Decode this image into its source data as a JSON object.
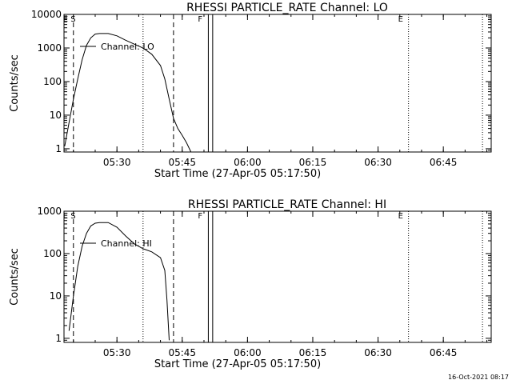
{
  "footer": {
    "timestamp": "16-Oct-2021 08:17"
  },
  "chart_data": [
    {
      "type": "line",
      "title": "RHESSI PARTICLE_RATE Channel: LO",
      "xlabel": "Start Time (27-Apr-05 05:17:50)",
      "ylabel": "Counts/sec",
      "y_scale": "log",
      "xlim": [
        "05:17:50",
        "06:56:00"
      ],
      "ylim": [
        0.8,
        10000
      ],
      "x_ticks": [
        "05:30",
        "05:45",
        "06:00",
        "06:15",
        "06:30",
        "06:45"
      ],
      "y_ticks": [
        "1",
        "10",
        "100",
        "1000",
        "10000"
      ],
      "grid": false,
      "legend_position": "top-left",
      "series": [
        {
          "name": "Channel: LO",
          "color": "#000000",
          "x": [
            "05:18:00",
            "05:19:00",
            "05:20:00",
            "05:21:00",
            "05:22:00",
            "05:23:00",
            "05:24:00",
            "05:25:00",
            "05:26:00",
            "05:28:00",
            "05:30:00",
            "05:32:00",
            "05:34:00",
            "05:36:00",
            "05:38:00",
            "05:40:00",
            "05:41:00",
            "05:42:00",
            "05:43:00",
            "05:44:00",
            "05:45:00",
            "05:46:00",
            "05:47:00"
          ],
          "y": [
            1.2,
            6,
            30,
            120,
            450,
            1200,
            2000,
            2600,
            2700,
            2700,
            2300,
            1700,
            1300,
            1000,
            650,
            300,
            120,
            30,
            8,
            4,
            2.5,
            1.5,
            0.8
          ]
        }
      ],
      "vlines": [
        {
          "x": "05:20:00",
          "style": "dashed",
          "label": "E S"
        },
        {
          "x": "05:36:00",
          "style": "dotted",
          "label": ""
        },
        {
          "x": "05:43:00",
          "style": "dashed",
          "label": ""
        },
        {
          "x": "05:51:00",
          "style": "solid",
          "label": "F"
        },
        {
          "x": "05:52:00",
          "style": "solid",
          "label": ""
        },
        {
          "x": "06:37:00",
          "style": "dotted",
          "label": "E"
        },
        {
          "x": "06:54:00",
          "style": "dotted",
          "label": ""
        }
      ]
    },
    {
      "type": "line",
      "title": "RHESSI PARTICLE_RATE Channel: HI",
      "xlabel": "Start Time (27-Apr-05 05:17:50)",
      "ylabel": "Counts/sec",
      "y_scale": "log",
      "xlim": [
        "05:17:50",
        "06:56:00"
      ],
      "ylim": [
        0.8,
        1000
      ],
      "x_ticks": [
        "05:30",
        "05:45",
        "06:00",
        "06:15",
        "06:30",
        "06:45"
      ],
      "y_ticks": [
        "1",
        "10",
        "100",
        "1000"
      ],
      "grid": false,
      "legend_position": "top-left",
      "series": [
        {
          "name": "Channel: HI",
          "color": "#000000",
          "x": [
            "05:19:00",
            "05:20:00",
            "05:21:00",
            "05:22:00",
            "05:23:00",
            "05:24:00",
            "05:25:00",
            "05:26:00",
            "05:28:00",
            "05:30:00",
            "05:32:00",
            "05:34:00",
            "05:36:00",
            "05:38:00",
            "05:40:00",
            "05:41:00",
            "05:41:30",
            "05:42:00"
          ],
          "y": [
            1.5,
            10,
            50,
            150,
            300,
            450,
            520,
            540,
            540,
            420,
            260,
            170,
            130,
            110,
            80,
            40,
            8,
            0.9
          ]
        }
      ],
      "vlines": [
        {
          "x": "05:20:00",
          "style": "dashed",
          "label": "E S"
        },
        {
          "x": "05:36:00",
          "style": "dotted",
          "label": ""
        },
        {
          "x": "05:43:00",
          "style": "dashed",
          "label": ""
        },
        {
          "x": "05:51:00",
          "style": "solid",
          "label": "F"
        },
        {
          "x": "05:52:00",
          "style": "solid",
          "label": ""
        },
        {
          "x": "06:37:00",
          "style": "dotted",
          "label": "E"
        },
        {
          "x": "06:54:00",
          "style": "dotted",
          "label": ""
        }
      ]
    }
  ]
}
